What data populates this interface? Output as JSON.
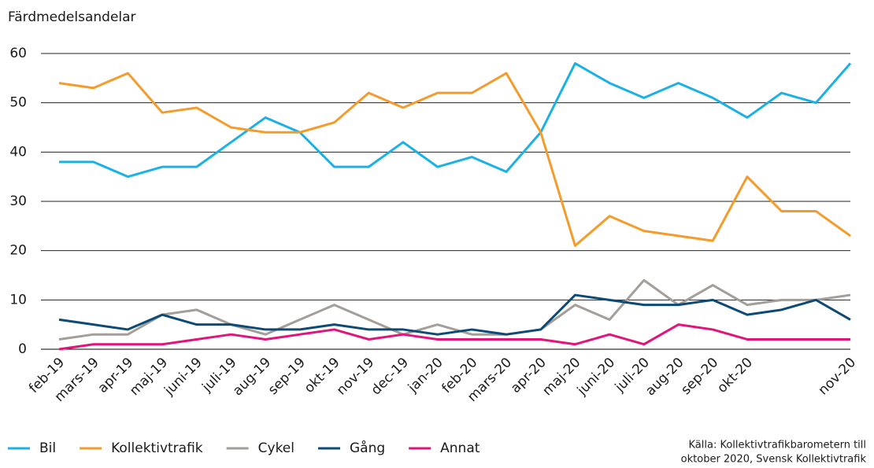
{
  "chart_data": {
    "type": "line",
    "title": "Färdmedelsandelar",
    "categories": [
      "feb-19",
      "mars-19",
      "apr-19",
      "maj-19",
      "juni-19",
      "juli-19",
      "aug-19",
      "sep-19",
      "okt-19",
      "nov-19",
      "dec-19",
      "jan-20",
      "feb-20",
      "mars-20",
      "apr-20",
      "maj-20",
      "juni-20",
      "juli-20",
      "aug-20",
      "sep-20",
      "okt-20",
      null,
      null,
      "nov-20"
    ],
    "series": [
      {
        "name": "Bil",
        "color": "#1bb1e7",
        "values": [
          38,
          38,
          35,
          37,
          37,
          42,
          47,
          44,
          37,
          37,
          42,
          37,
          39,
          36,
          44,
          58,
          54,
          51,
          54,
          51,
          47,
          52,
          50,
          58
        ]
      },
      {
        "name": "Kollektivtrafik",
        "color": "#f39c2c",
        "values": [
          54,
          53,
          56,
          48,
          49,
          45,
          44,
          44,
          46,
          52,
          49,
          52,
          52,
          56,
          44,
          21,
          27,
          24,
          23,
          22,
          35,
          28,
          28,
          23
        ]
      },
      {
        "name": "Cykel",
        "color": "#a39e99",
        "values": [
          2,
          3,
          3,
          7,
          8,
          5,
          3,
          6,
          9,
          6,
          3,
          5,
          3,
          3,
          4,
          9,
          6,
          14,
          9,
          13,
          9,
          10,
          10,
          11
        ]
      },
      {
        "name": "Gång",
        "color": "#0d4a75",
        "values": [
          6,
          5,
          4,
          7,
          5,
          5,
          4,
          4,
          5,
          4,
          4,
          3,
          4,
          3,
          4,
          11,
          10,
          9,
          9,
          10,
          7,
          8,
          10,
          6
        ]
      },
      {
        "name": "Annat",
        "color": "#e0147a",
        "values": [
          0,
          1,
          1,
          1,
          2,
          3,
          2,
          3,
          4,
          2,
          3,
          2,
          2,
          2,
          2,
          1,
          3,
          1,
          5,
          4,
          2,
          2,
          2,
          2
        ]
      }
    ],
    "ylim": [
      0,
      60
    ],
    "yticks": [
      0,
      10,
      20,
      30,
      40,
      50,
      60
    ],
    "grid": true,
    "source": [
      "Källa: Kollektivtrafikbarometern till",
      "oktober 2020, Svensk Kollektivtrafik"
    ]
  }
}
